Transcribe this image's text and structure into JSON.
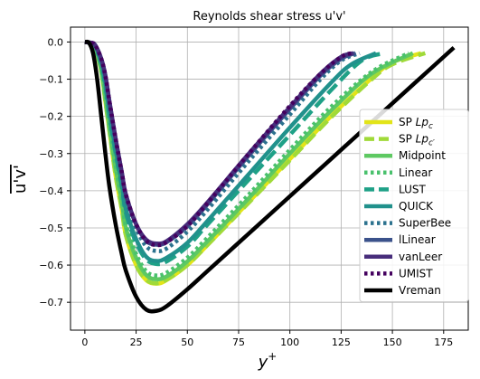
{
  "chart_data": {
    "type": "line",
    "title": "Reynolds shear stress u'v'",
    "xlabel": "y",
    "xlabel_sup": "+",
    "ylabel": "u'v'",
    "xlim": [
      -7,
      187
    ],
    "ylim": [
      -0.775,
      0.04
    ],
    "xticks": [
      0,
      25,
      50,
      75,
      100,
      125,
      150,
      175
    ],
    "yticks": [
      0.0,
      -0.1,
      -0.2,
      -0.3,
      -0.4,
      -0.5,
      -0.6,
      -0.7
    ],
    "grid": true,
    "legend_position": "right",
    "series": [
      {
        "name": "SP Lp_c",
        "color": "#e2e419",
        "style": "solid",
        "curve": [
          [
            0,
            0
          ],
          [
            3,
            -0.003
          ],
          [
            5,
            -0.015
          ],
          [
            8,
            -0.08
          ],
          [
            10,
            -0.16
          ],
          [
            12,
            -0.24
          ],
          [
            15,
            -0.36
          ],
          [
            18,
            -0.45
          ],
          [
            20,
            -0.52
          ],
          [
            25,
            -0.6
          ],
          [
            30,
            -0.641
          ],
          [
            35,
            -0.65
          ],
          [
            40,
            -0.64
          ],
          [
            50,
            -0.6
          ],
          [
            60,
            -0.545
          ],
          [
            80,
            -0.43
          ],
          [
            100,
            -0.315
          ],
          [
            120,
            -0.2
          ],
          [
            140,
            -0.097
          ],
          [
            150,
            -0.055
          ],
          [
            164,
            -0.03
          ]
        ]
      },
      {
        "name": "SP Lp'_c",
        "color": "#a0da39",
        "style": "dashed",
        "curve": [
          [
            0,
            0
          ],
          [
            3,
            -0.003
          ],
          [
            5,
            -0.015
          ],
          [
            8,
            -0.08
          ],
          [
            10,
            -0.16
          ],
          [
            12,
            -0.24
          ],
          [
            15,
            -0.36
          ],
          [
            18,
            -0.45
          ],
          [
            20,
            -0.52
          ],
          [
            25,
            -0.6
          ],
          [
            30,
            -0.64
          ],
          [
            35,
            -0.649
          ],
          [
            40,
            -0.639
          ],
          [
            50,
            -0.6
          ],
          [
            60,
            -0.545
          ],
          [
            80,
            -0.432
          ],
          [
            100,
            -0.318
          ],
          [
            120,
            -0.203
          ],
          [
            140,
            -0.1
          ],
          [
            150,
            -0.06
          ],
          [
            166,
            -0.03
          ]
        ]
      },
      {
        "name": "Midpoint",
        "color": "#5ec962",
        "style": "solid",
        "curve": [
          [
            0,
            0
          ],
          [
            3,
            -0.003
          ],
          [
            5,
            -0.013
          ],
          [
            8,
            -0.075
          ],
          [
            10,
            -0.15
          ],
          [
            12,
            -0.23
          ],
          [
            15,
            -0.34
          ],
          [
            18,
            -0.43
          ],
          [
            20,
            -0.5
          ],
          [
            25,
            -0.58
          ],
          [
            30,
            -0.627
          ],
          [
            35,
            -0.638
          ],
          [
            40,
            -0.63
          ],
          [
            50,
            -0.59
          ],
          [
            60,
            -0.535
          ],
          [
            80,
            -0.42
          ],
          [
            100,
            -0.3
          ],
          [
            120,
            -0.185
          ],
          [
            140,
            -0.085
          ],
          [
            160,
            -0.03
          ]
        ]
      },
      {
        "name": "Linear",
        "color": "#4ac16d",
        "style": "dotted",
        "curve": [
          [
            0,
            0
          ],
          [
            3,
            -0.003
          ],
          [
            5,
            -0.012
          ],
          [
            8,
            -0.07
          ],
          [
            10,
            -0.14
          ],
          [
            12,
            -0.22
          ],
          [
            15,
            -0.33
          ],
          [
            18,
            -0.42
          ],
          [
            20,
            -0.49
          ],
          [
            25,
            -0.57
          ],
          [
            30,
            -0.617
          ],
          [
            35,
            -0.628
          ],
          [
            40,
            -0.62
          ],
          [
            50,
            -0.58
          ],
          [
            60,
            -0.525
          ],
          [
            80,
            -0.41
          ],
          [
            100,
            -0.29
          ],
          [
            120,
            -0.175
          ],
          [
            140,
            -0.08
          ],
          [
            158,
            -0.03
          ]
        ]
      },
      {
        "name": "LUST",
        "color": "#1fa187",
        "style": "dashed",
        "curve": [
          [
            0,
            0
          ],
          [
            3,
            -0.003
          ],
          [
            5,
            -0.01
          ],
          [
            8,
            -0.06
          ],
          [
            10,
            -0.12
          ],
          [
            12,
            -0.2
          ],
          [
            15,
            -0.3
          ],
          [
            18,
            -0.39
          ],
          [
            20,
            -0.46
          ],
          [
            25,
            -0.54
          ],
          [
            30,
            -0.585
          ],
          [
            35,
            -0.597
          ],
          [
            40,
            -0.59
          ],
          [
            50,
            -0.55
          ],
          [
            60,
            -0.49
          ],
          [
            80,
            -0.37
          ],
          [
            100,
            -0.25
          ],
          [
            120,
            -0.13
          ],
          [
            135,
            -0.05
          ],
          [
            146,
            -0.03
          ]
        ]
      },
      {
        "name": "QUICK",
        "color": "#21918c",
        "style": "solid",
        "curve": [
          [
            0,
            0
          ],
          [
            3,
            -0.003
          ],
          [
            5,
            -0.01
          ],
          [
            8,
            -0.055
          ],
          [
            10,
            -0.11
          ],
          [
            12,
            -0.19
          ],
          [
            15,
            -0.29
          ],
          [
            18,
            -0.38
          ],
          [
            20,
            -0.45
          ],
          [
            25,
            -0.53
          ],
          [
            30,
            -0.578
          ],
          [
            35,
            -0.589
          ],
          [
            40,
            -0.58
          ],
          [
            50,
            -0.54
          ],
          [
            60,
            -0.48
          ],
          [
            80,
            -0.355
          ],
          [
            100,
            -0.23
          ],
          [
            120,
            -0.11
          ],
          [
            130,
            -0.06
          ],
          [
            142,
            -0.03
          ]
        ]
      },
      {
        "name": "SuperBee",
        "color": "#2c728e",
        "style": "dotted",
        "curve": [
          [
            0,
            0
          ],
          [
            3,
            -0.002
          ],
          [
            5,
            -0.009
          ],
          [
            8,
            -0.05
          ],
          [
            10,
            -0.1
          ],
          [
            12,
            -0.17
          ],
          [
            15,
            -0.27
          ],
          [
            18,
            -0.36
          ],
          [
            20,
            -0.42
          ],
          [
            25,
            -0.5
          ],
          [
            30,
            -0.55
          ],
          [
            35,
            -0.562
          ],
          [
            40,
            -0.555
          ],
          [
            50,
            -0.51
          ],
          [
            60,
            -0.45
          ],
          [
            80,
            -0.32
          ],
          [
            100,
            -0.195
          ],
          [
            115,
            -0.1
          ],
          [
            125,
            -0.05
          ],
          [
            134,
            -0.03
          ]
        ]
      },
      {
        "name": "lLinear",
        "color": "#3b528b",
        "style": "solid",
        "curve": [
          [
            0,
            0
          ],
          [
            3,
            -0.002
          ],
          [
            5,
            -0.008
          ],
          [
            8,
            -0.045
          ],
          [
            10,
            -0.09
          ],
          [
            12,
            -0.16
          ],
          [
            15,
            -0.26
          ],
          [
            18,
            -0.35
          ],
          [
            20,
            -0.41
          ],
          [
            25,
            -0.49
          ],
          [
            30,
            -0.535
          ],
          [
            35,
            -0.545
          ],
          [
            40,
            -0.538
          ],
          [
            50,
            -0.495
          ],
          [
            60,
            -0.435
          ],
          [
            80,
            -0.305
          ],
          [
            100,
            -0.18
          ],
          [
            115,
            -0.09
          ],
          [
            125,
            -0.045
          ],
          [
            132,
            -0.03
          ]
        ]
      },
      {
        "name": "vanLeer",
        "color": "#472d7b",
        "style": "solid",
        "curve": [
          [
            0,
            0
          ],
          [
            3,
            -0.002
          ],
          [
            5,
            -0.008
          ],
          [
            8,
            -0.045
          ],
          [
            10,
            -0.09
          ],
          [
            12,
            -0.16
          ],
          [
            15,
            -0.26
          ],
          [
            18,
            -0.35
          ],
          [
            20,
            -0.41
          ],
          [
            25,
            -0.49
          ],
          [
            30,
            -0.532
          ],
          [
            35,
            -0.542
          ],
          [
            40,
            -0.535
          ],
          [
            50,
            -0.49
          ],
          [
            60,
            -0.43
          ],
          [
            80,
            -0.3
          ],
          [
            100,
            -0.175
          ],
          [
            115,
            -0.085
          ],
          [
            125,
            -0.04
          ],
          [
            131,
            -0.03
          ]
        ]
      },
      {
        "name": "UMIST",
        "color": "#44015e",
        "style": "dotted",
        "curve": [
          [
            0,
            0
          ],
          [
            3,
            -0.002
          ],
          [
            5,
            -0.008
          ],
          [
            8,
            -0.045
          ],
          [
            10,
            -0.09
          ],
          [
            12,
            -0.16
          ],
          [
            15,
            -0.26
          ],
          [
            18,
            -0.35
          ],
          [
            20,
            -0.41
          ],
          [
            25,
            -0.49
          ],
          [
            30,
            -0.535
          ],
          [
            35,
            -0.546
          ],
          [
            40,
            -0.538
          ],
          [
            50,
            -0.495
          ],
          [
            60,
            -0.432
          ],
          [
            80,
            -0.3
          ],
          [
            100,
            -0.172
          ],
          [
            115,
            -0.085
          ],
          [
            125,
            -0.04
          ],
          [
            130,
            -0.03
          ]
        ]
      },
      {
        "name": "Vreman",
        "color": "#000000",
        "style": "solid",
        "curve": [
          [
            0,
            0
          ],
          [
            2,
            -0.002
          ],
          [
            4,
            -0.03
          ],
          [
            6,
            -0.1
          ],
          [
            8,
            -0.2
          ],
          [
            10,
            -0.3
          ],
          [
            12,
            -0.39
          ],
          [
            15,
            -0.49
          ],
          [
            18,
            -0.57
          ],
          [
            20,
            -0.615
          ],
          [
            25,
            -0.685
          ],
          [
            30,
            -0.72
          ],
          [
            35,
            -0.723
          ],
          [
            40,
            -0.71
          ],
          [
            50,
            -0.665
          ],
          [
            60,
            -0.615
          ],
          [
            80,
            -0.515
          ],
          [
            100,
            -0.415
          ],
          [
            120,
            -0.315
          ],
          [
            140,
            -0.215
          ],
          [
            160,
            -0.115
          ],
          [
            180,
            -0.015
          ]
        ]
      }
    ]
  }
}
